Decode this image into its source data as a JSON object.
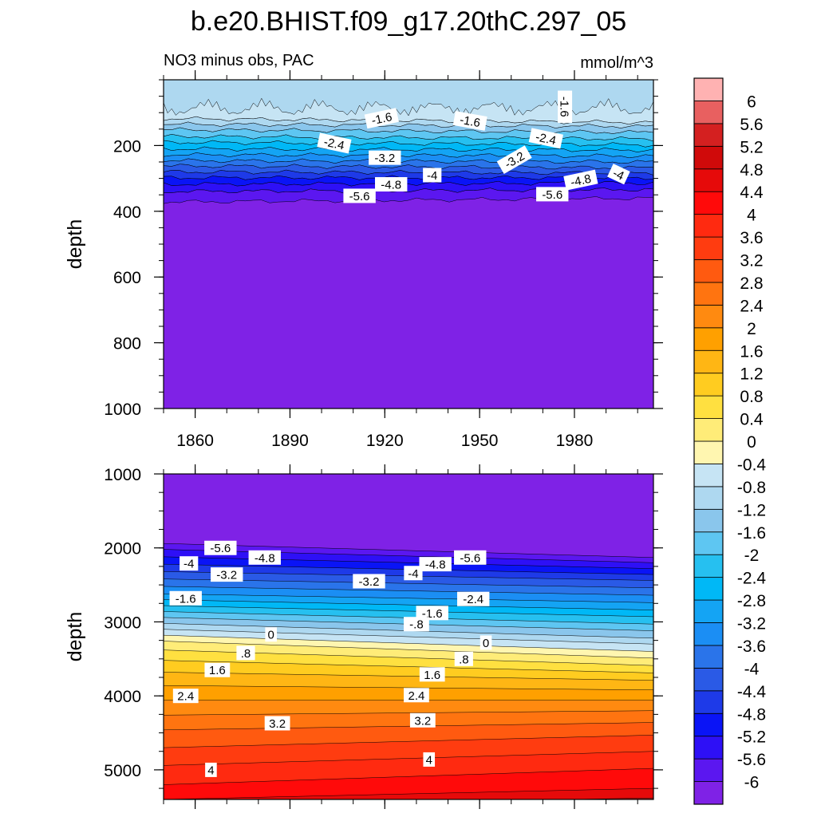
{
  "title": "b.e20.BHIST.f09_g17.20thC.297_05",
  "left_label": "NO3 minus obs, PAC",
  "units_label": "mmol/m^3",
  "colors": {
    "levels": [
      "#ffffff"
    ],
    "fills": [
      "#7f22e6",
      "#5b17f0",
      "#2e10f6",
      "#0a14f6",
      "#1e3ae8",
      "#2a5ae6",
      "#2a74ea",
      "#1b8ef4",
      "#14a4f4",
      "#00b8f6",
      "#26c0f0",
      "#5ec6f2",
      "#8ac6ec",
      "#aed8f0",
      "#c6e4f4",
      "#fff6b0",
      "#ffec78",
      "#ffe040",
      "#ffcc20",
      "#ffb614",
      "#ffa000",
      "#ff8a10",
      "#ff7410",
      "#ff5a10",
      "#ff3c10",
      "#ff2a10",
      "#ff0a0a",
      "#e60a0a",
      "#d00a0a",
      "#d42020",
      "#e86060",
      "#ffb2b2"
    ]
  },
  "chart_data": [
    {
      "type": "contour",
      "name": "upper",
      "ylabel": "depth",
      "ylim": [
        0,
        1000
      ],
      "yinverted": true,
      "ytick_labels": [
        "200",
        "400",
        "600",
        "800",
        "1000"
      ],
      "ytick_values": [
        200,
        400,
        600,
        800,
        1000
      ],
      "xlim": [
        1850,
        2005
      ],
      "xtick_labels": [
        "1860",
        "1890",
        "1920",
        "1950",
        "1980"
      ],
      "xtick_values": [
        1860,
        1890,
        1920,
        1950,
        1980
      ],
      "contour_labels": [
        {
          "text": "-1.6",
          "x": 1919,
          "y": 117,
          "rot": -12
        },
        {
          "text": "-1.6",
          "x": 1947,
          "y": 125,
          "rot": 10
        },
        {
          "text": "-1.6",
          "x": 1977,
          "y": 82,
          "rot": 90
        },
        {
          "text": "-2.4",
          "x": 1904,
          "y": 193,
          "rot": 12
        },
        {
          "text": "-2.4",
          "x": 1971,
          "y": 178,
          "rot": 12
        },
        {
          "text": "-3.2",
          "x": 1920,
          "y": 237,
          "rot": 0
        },
        {
          "text": "-3.2",
          "x": 1961,
          "y": 243,
          "rot": -30
        },
        {
          "text": "-4",
          "x": 1935,
          "y": 290,
          "rot": 0
        },
        {
          "text": "-4",
          "x": 1994,
          "y": 287,
          "rot": 25
        },
        {
          "text": "-4.8",
          "x": 1922,
          "y": 318,
          "rot": 0
        },
        {
          "text": "-4.8",
          "x": 1982,
          "y": 305,
          "rot": -12
        },
        {
          "text": "-5.6",
          "x": 1912,
          "y": 353,
          "rot": 0
        },
        {
          "text": "-5.6",
          "x": 1973,
          "y": 348,
          "rot": 0
        }
      ]
    },
    {
      "type": "contour",
      "name": "lower",
      "ylabel": "depth",
      "ylim": [
        1000,
        5400
      ],
      "yinverted": true,
      "ytick_labels": [
        "1000",
        "2000",
        "3000",
        "4000",
        "5000"
      ],
      "ytick_values": [
        1000,
        2000,
        3000,
        4000,
        5000
      ],
      "xlim": [
        1850,
        2005
      ],
      "xtick_values": [
        1860,
        1890,
        1920,
        1950,
        1980
      ],
      "contour_labels": [
        {
          "text": "-5.6",
          "x": 1868,
          "y": 2000
        },
        {
          "text": "-5.6",
          "x": 1947,
          "y": 2130
        },
        {
          "text": "-4.8",
          "x": 1882,
          "y": 2130
        },
        {
          "text": "-4.8",
          "x": 1936,
          "y": 2220
        },
        {
          "text": "-4",
          "x": 1858,
          "y": 2210
        },
        {
          "text": "-4",
          "x": 1929,
          "y": 2340
        },
        {
          "text": "-3.2",
          "x": 1870,
          "y": 2360
        },
        {
          "text": "-3.2",
          "x": 1915,
          "y": 2450
        },
        {
          "text": "-2.4",
          "x": 1948,
          "y": 2690
        },
        {
          "text": "-1.6",
          "x": 1857,
          "y": 2680
        },
        {
          "text": "-1.6",
          "x": 1935,
          "y": 2880
        },
        {
          "text": "-.8",
          "x": 1930,
          "y": 3030
        },
        {
          "text": "0",
          "x": 1884,
          "y": 3170
        },
        {
          "text": "0",
          "x": 1952,
          "y": 3280
        },
        {
          "text": ".8",
          "x": 1876,
          "y": 3420
        },
        {
          "text": ".8",
          "x": 1945,
          "y": 3500
        },
        {
          "text": "1.6",
          "x": 1867,
          "y": 3650
        },
        {
          "text": "1.6",
          "x": 1935,
          "y": 3710
        },
        {
          "text": "2.4",
          "x": 1857,
          "y": 4000
        },
        {
          "text": "2.4",
          "x": 1930,
          "y": 3990
        },
        {
          "text": "3.2",
          "x": 1886,
          "y": 4370
        },
        {
          "text": "3.2",
          "x": 1932,
          "y": 4330
        },
        {
          "text": "4",
          "x": 1865,
          "y": 5000
        },
        {
          "text": "4",
          "x": 1934,
          "y": 4860
        }
      ]
    },
    {
      "type": "colorbar",
      "name": "colorbar",
      "labels": [
        "6",
        "5.6",
        "5.2",
        "4.8",
        "4.4",
        "4",
        "3.6",
        "3.2",
        "2.8",
        "2.4",
        "2",
        "1.6",
        "1.2",
        "0.8",
        "0.4",
        "0",
        "-0.4",
        "-0.8",
        "-1.2",
        "-1.6",
        "-2",
        "-2.4",
        "-2.8",
        "-3.2",
        "-3.6",
        "-4",
        "-4.4",
        "-4.8",
        "-5.2",
        "-5.6",
        "-6"
      ]
    }
  ]
}
